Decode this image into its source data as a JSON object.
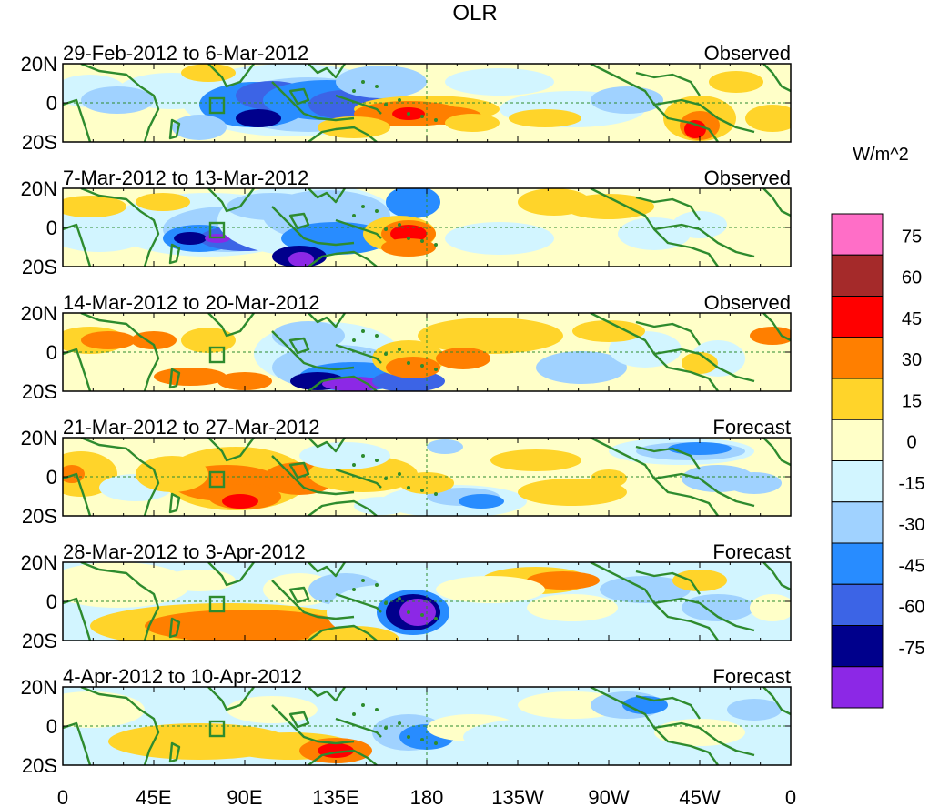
{
  "chart_data": {
    "type": "heatmap",
    "title": "OLR",
    "colorbar": {
      "unit": "W/m^2",
      "levels": [
        "75",
        "60",
        "45",
        "30",
        "15",
        "0",
        "-15",
        "-30",
        "-45",
        "-60",
        "-75"
      ],
      "colors": [
        "#ff6ec7",
        "#a52a2a",
        "#ff0000",
        "#ff7f00",
        "#ffd42a",
        "#ffffc8",
        "#d2f5ff",
        "#a0d2ff",
        "#288cff",
        "#3c64e6",
        "#00008c",
        "#8c28e6"
      ]
    },
    "x_ticks": [
      "0",
      "45E",
      "90E",
      "135E",
      "180",
      "135W",
      "90W",
      "45W",
      "0"
    ],
    "y_ticks": [
      "20N",
      "0",
      "20S"
    ],
    "panels": [
      {
        "period": "29-Feb-2012 to 6-Mar-2012",
        "kind": "Observed"
      },
      {
        "period": "7-Mar-2012 to 13-Mar-2012",
        "kind": "Observed"
      },
      {
        "period": "14-Mar-2012 to 20-Mar-2012",
        "kind": "Observed"
      },
      {
        "period": "21-Mar-2012 to 27-Mar-2012",
        "kind": "Forecast"
      },
      {
        "period": "28-Mar-2012 to 3-Apr-2012",
        "kind": "Forecast"
      },
      {
        "period": "4-Apr-2012 to 10-Apr-2012",
        "kind": "Forecast"
      }
    ]
  }
}
